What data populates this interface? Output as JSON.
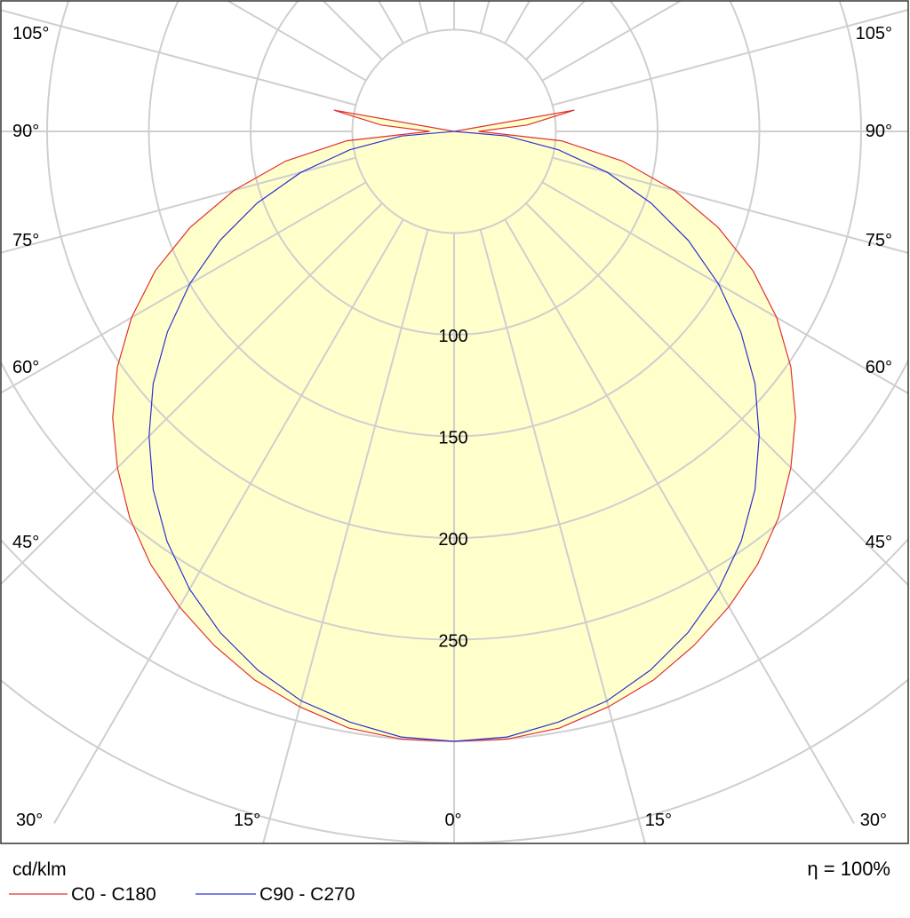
{
  "chart_data": {
    "type": "polar",
    "unit_label": "cd/klm",
    "efficiency_label": "η = 100%",
    "radial_ticks": [
      "100",
      "150",
      "200",
      "250"
    ],
    "radial_tick_values": [
      100,
      150,
      200,
      250
    ],
    "radial_ring_values": [
      50,
      100,
      150,
      200,
      250,
      300,
      350
    ],
    "angle_labels_left": [
      "105°",
      "90°",
      "75°",
      "60°",
      "45°",
      "30°",
      "15°"
    ],
    "angle_labels_right": [
      "105°",
      "90°",
      "75°",
      "60°",
      "45°",
      "30°",
      "15°"
    ],
    "angle_label_bottom": "0°",
    "fill_color": "#ffffcc",
    "series": [
      {
        "name": "C0 - C180",
        "color": "#e03030",
        "angles": [
          0,
          5,
          10,
          15,
          20,
          25,
          30,
          35,
          40,
          45,
          50,
          55,
          60,
          65,
          70,
          75,
          80,
          85,
          90,
          95,
          100,
          105
        ],
        "values": [
          300,
          300,
          298,
          293,
          287,
          279,
          270,
          260,
          248,
          234,
          219,
          202,
          183,
          162,
          138,
          112,
          84,
          53,
          12,
          36,
          60,
          0
        ]
      },
      {
        "name": "C90 - C270",
        "color": "#3030d0",
        "angles": [
          0,
          5,
          10,
          15,
          20,
          25,
          30,
          35,
          40,
          45,
          50,
          55,
          60,
          65,
          70,
          75,
          80,
          85,
          90
        ],
        "values": [
          300,
          299,
          295,
          290,
          282,
          272,
          260,
          246,
          230,
          212,
          193,
          172,
          150,
          127,
          103,
          78,
          52,
          26,
          0
        ]
      }
    ]
  },
  "legend": {
    "unit": "cd/klm",
    "efficiency": "η = 100%",
    "series_1": "C0 - C180",
    "series_2": "C90 - C270"
  }
}
